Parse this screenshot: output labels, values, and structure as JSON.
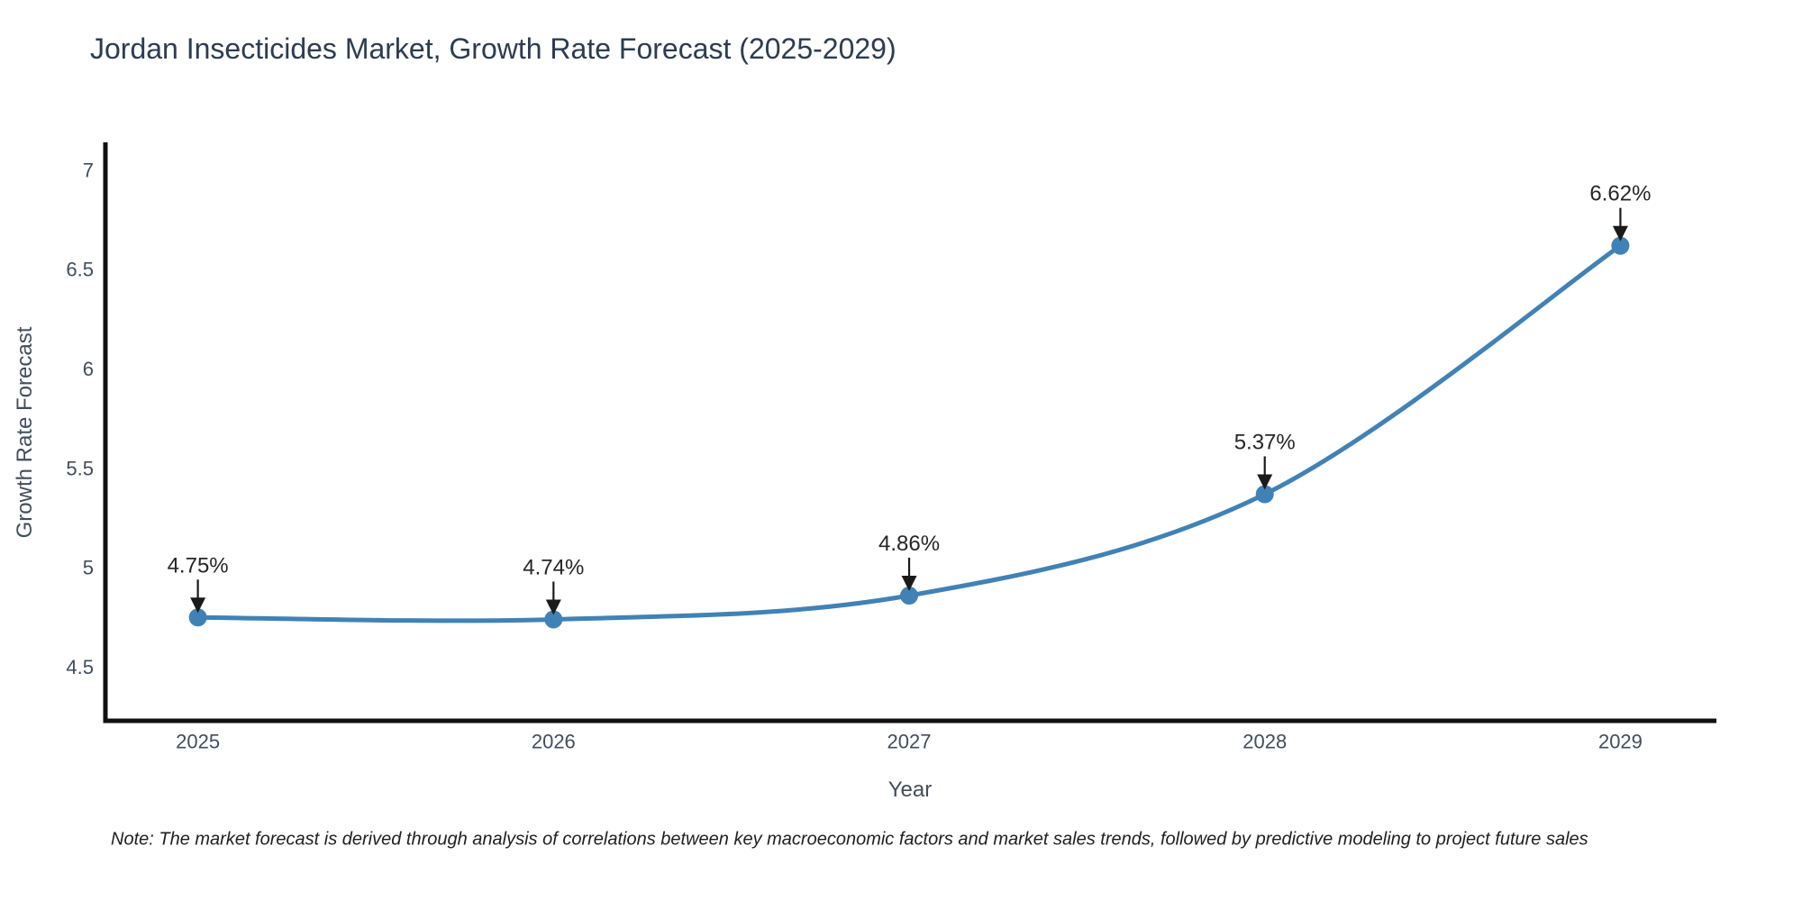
{
  "chart": {
    "title": "Jordan Insecticides Market, Growth Rate Forecast (2025-2029)",
    "x_axis": {
      "title": "Year"
    },
    "y_axis": {
      "title": "Growth Rate Forecast"
    },
    "note": "Note: The market forecast is derived through analysis of correlations between key macroeconomic factors and market sales trends, followed by predictive modeling to project future sales"
  },
  "chart_data": {
    "type": "line",
    "title": "Jordan Insecticides Market, Growth Rate Forecast (2025-2029)",
    "xlabel": "Year",
    "ylabel": "Growth Rate Forecast",
    "x": [
      2025,
      2026,
      2027,
      2028,
      2029
    ],
    "values": [
      4.75,
      4.74,
      4.86,
      5.37,
      6.62
    ],
    "point_labels": [
      "4.75%",
      "4.74%",
      "4.86%",
      "5.37%",
      "6.62%"
    ],
    "x_ticks": [
      "2025",
      "2026",
      "2027",
      "2028",
      "2029"
    ],
    "x_tick_values": [
      2025,
      2026,
      2027,
      2028,
      2029
    ],
    "y_ticks": [
      "4.5",
      "5",
      "5.5",
      "6",
      "6.5",
      "7"
    ],
    "y_tick_values": [
      4.5,
      5,
      5.5,
      6,
      6.5,
      7
    ],
    "xlim": [
      2024.74,
      2029.27
    ],
    "ylim": [
      4.23,
      7.14
    ],
    "grid": false,
    "legend": false,
    "curve": "spline",
    "annotations": "value labels with downward arrows above each point"
  },
  "colors": {
    "line": "#4182b6",
    "marker": "#4182b6",
    "axis": "#111111",
    "title_text": "#2d3c50",
    "tick_text": "#424d5c",
    "annotation_text": "#262626",
    "arrow": "#1a1a1a",
    "note_text": "#1f1f1f",
    "background": "#ffffff"
  }
}
